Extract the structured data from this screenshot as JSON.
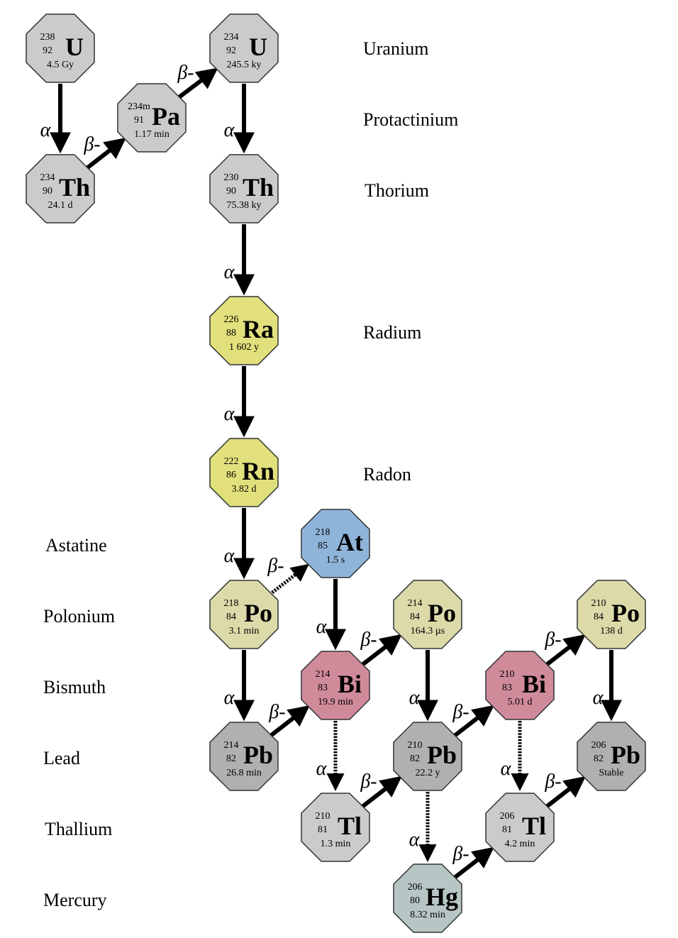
{
  "colors": {
    "actinide": "#cbcbcb",
    "radium_radon": "#e1e07c",
    "polonium": "#dcdaa9",
    "astatine": "#8fb4da",
    "bismuth": "#d08b9a",
    "lead": "#b0b0b0",
    "thallium": "#cbcbcb",
    "mercury": "#b7c6c4",
    "outline": "#333333",
    "arrow": "#000000"
  },
  "element_labels": {
    "uranium": "Uranium",
    "protactinium": "Protactinium",
    "thorium": "Thorium",
    "radium": "Radium",
    "radon": "Radon",
    "astatine": "Astatine",
    "polonium": "Polonium",
    "bismuth": "Bismuth",
    "lead": "Lead",
    "thallium": "Thallium",
    "mercury": "Mercury"
  },
  "decay_modes": {
    "alpha": "α",
    "beta": "β-"
  },
  "nuclides": {
    "u238": {
      "mass": "238",
      "z": "92",
      "symbol": "U",
      "half_life": "4.5 Gy",
      "color": "actinide"
    },
    "th234": {
      "mass": "234",
      "z": "90",
      "symbol": "Th",
      "half_life": "24.1 d",
      "color": "actinide"
    },
    "pa234m": {
      "mass": "234m",
      "z": "91",
      "symbol": "Pa",
      "half_life": "1.17 min",
      "color": "actinide"
    },
    "u234": {
      "mass": "234",
      "z": "92",
      "symbol": "U",
      "half_life": "245.5 ky",
      "color": "actinide"
    },
    "th230": {
      "mass": "230",
      "z": "90",
      "symbol": "Th",
      "half_life": "75.38 ky",
      "color": "actinide"
    },
    "ra226": {
      "mass": "226",
      "z": "88",
      "symbol": "Ra",
      "half_life": "1 602 y",
      "color": "radium_radon"
    },
    "rn222": {
      "mass": "222",
      "z": "86",
      "symbol": "Rn",
      "half_life": "3.82 d",
      "color": "radium_radon"
    },
    "at218": {
      "mass": "218",
      "z": "85",
      "symbol": "At",
      "half_life": "1.5 s",
      "color": "astatine"
    },
    "po218": {
      "mass": "218",
      "z": "84",
      "symbol": "Po",
      "half_life": "3.1 min",
      "color": "polonium"
    },
    "po214": {
      "mass": "214",
      "z": "84",
      "symbol": "Po",
      "half_life": "164.3 µs",
      "color": "polonium"
    },
    "po210": {
      "mass": "210",
      "z": "84",
      "symbol": "Po",
      "half_life": "138 d",
      "color": "polonium"
    },
    "bi214": {
      "mass": "214",
      "z": "83",
      "symbol": "Bi",
      "half_life": "19.9 min",
      "color": "bismuth"
    },
    "bi210": {
      "mass": "210",
      "z": "83",
      "symbol": "Bi",
      "half_life": "5.01 d",
      "color": "bismuth"
    },
    "pb214": {
      "mass": "214",
      "z": "82",
      "symbol": "Pb",
      "half_life": "26.8 min",
      "color": "lead"
    },
    "pb210": {
      "mass": "210",
      "z": "82",
      "symbol": "Pb",
      "half_life": "22.2 y",
      "color": "lead"
    },
    "pb206": {
      "mass": "206",
      "z": "82",
      "symbol": "Pb",
      "half_life": "Stable",
      "color": "lead"
    },
    "tl210": {
      "mass": "210",
      "z": "81",
      "symbol": "Tl",
      "half_life": "1.3 min",
      "color": "thallium"
    },
    "tl206": {
      "mass": "206",
      "z": "81",
      "symbol": "Tl",
      "half_life": "4.2 min",
      "color": "thallium"
    },
    "hg206": {
      "mass": "206",
      "z": "80",
      "symbol": "Hg",
      "half_life": "8.32 min",
      "color": "mercury"
    }
  },
  "decays": [
    {
      "from": "u238",
      "to": "th234",
      "mode": "alpha",
      "branch": "major"
    },
    {
      "from": "th234",
      "to": "pa234m",
      "mode": "beta",
      "branch": "major"
    },
    {
      "from": "pa234m",
      "to": "u234",
      "mode": "beta",
      "branch": "major"
    },
    {
      "from": "u234",
      "to": "th230",
      "mode": "alpha",
      "branch": "major"
    },
    {
      "from": "th230",
      "to": "ra226",
      "mode": "alpha",
      "branch": "major"
    },
    {
      "from": "ra226",
      "to": "rn222",
      "mode": "alpha",
      "branch": "major"
    },
    {
      "from": "rn222",
      "to": "po218",
      "mode": "alpha",
      "branch": "major"
    },
    {
      "from": "po218",
      "to": "at218",
      "mode": "beta",
      "branch": "minor"
    },
    {
      "from": "po218",
      "to": "pb214",
      "mode": "alpha",
      "branch": "major"
    },
    {
      "from": "at218",
      "to": "bi214",
      "mode": "alpha",
      "branch": "major"
    },
    {
      "from": "pb214",
      "to": "bi214",
      "mode": "beta",
      "branch": "major"
    },
    {
      "from": "bi214",
      "to": "po214",
      "mode": "beta",
      "branch": "major"
    },
    {
      "from": "bi214",
      "to": "tl210",
      "mode": "alpha",
      "branch": "minor"
    },
    {
      "from": "po214",
      "to": "pb210",
      "mode": "alpha",
      "branch": "major"
    },
    {
      "from": "tl210",
      "to": "pb210",
      "mode": "beta",
      "branch": "major"
    },
    {
      "from": "pb210",
      "to": "bi210",
      "mode": "beta",
      "branch": "major"
    },
    {
      "from": "pb210",
      "to": "hg206",
      "mode": "alpha",
      "branch": "minor"
    },
    {
      "from": "bi210",
      "to": "po210",
      "mode": "beta",
      "branch": "major"
    },
    {
      "from": "bi210",
      "to": "tl206",
      "mode": "alpha",
      "branch": "minor"
    },
    {
      "from": "hg206",
      "to": "tl206",
      "mode": "beta",
      "branch": "major"
    },
    {
      "from": "po210",
      "to": "pb206",
      "mode": "alpha",
      "branch": "major"
    },
    {
      "from": "tl206",
      "to": "pb206",
      "mode": "beta",
      "branch": "major"
    }
  ]
}
